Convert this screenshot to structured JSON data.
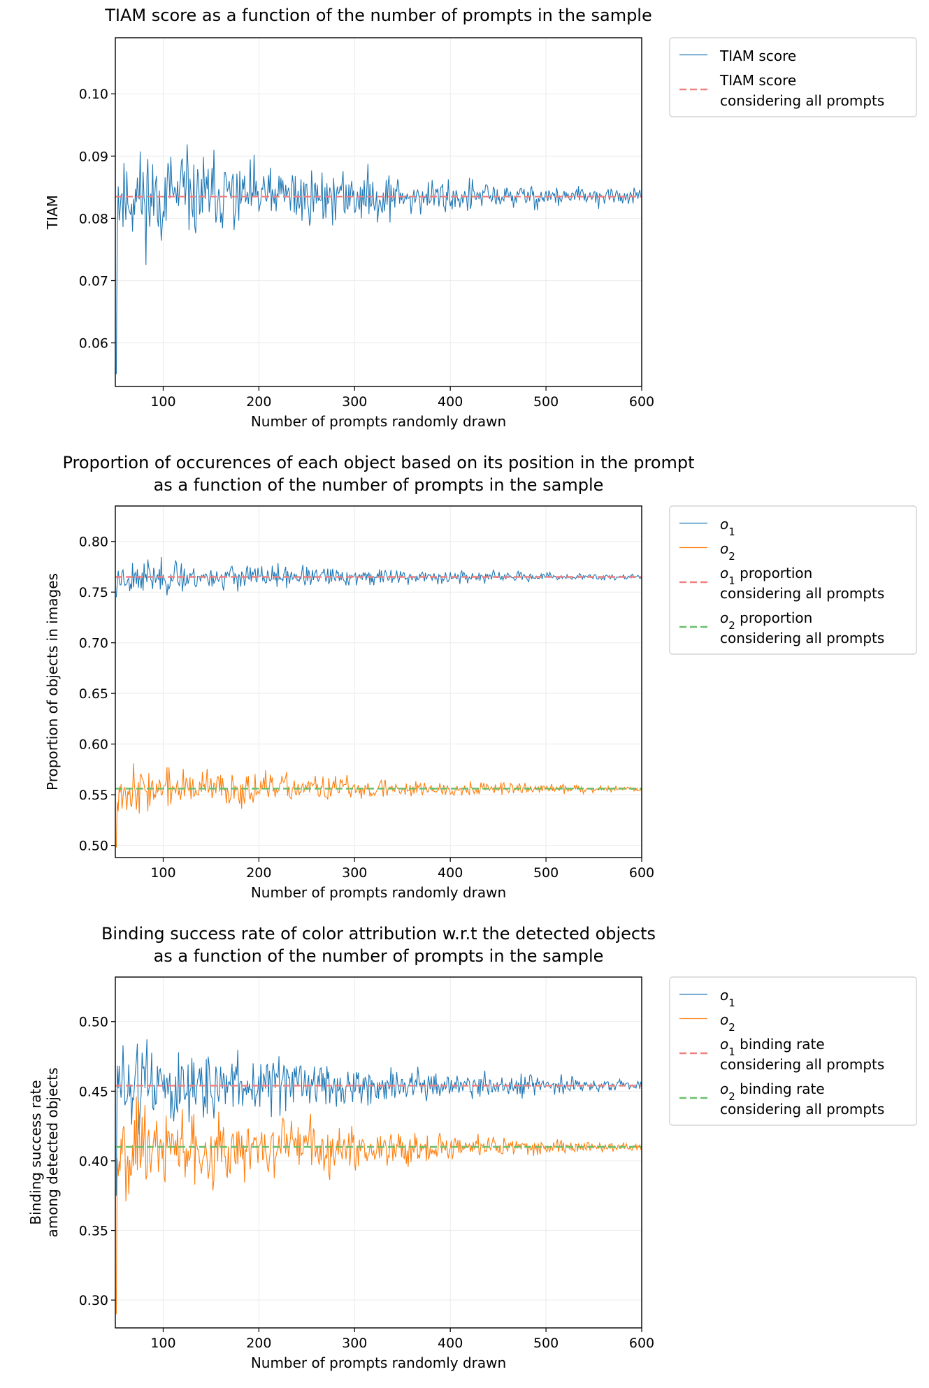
{
  "colors": {
    "series_o1": "#1f77b4",
    "series_o2": "#ff7f0e",
    "ref_red": "#f08080",
    "ref_green": "#6abf69",
    "grid": "#ebebeb",
    "axis": "#000000"
  },
  "chart_data": [
    {
      "type": "line",
      "title": [
        "TIAM score as a function of the number of prompts in the sample"
      ],
      "xlabel": "Number of prompts randomly drawn",
      "ylabel": [
        "TIAM"
      ],
      "xlim": [
        50,
        600
      ],
      "ylim": [
        0.053,
        0.109
      ],
      "xticks": [
        100,
        200,
        300,
        400,
        500,
        600
      ],
      "yticks": [
        0.06,
        0.07,
        0.08,
        0.09,
        0.1
      ],
      "ytick_labels": [
        "0.06",
        "0.07",
        "0.08",
        "0.09",
        "0.10"
      ],
      "grid": true,
      "legend_position": "outside-top-right",
      "series": [
        {
          "name": "TIAM score",
          "style": "solid",
          "color_key": "series_o1",
          "baseline": 0.0835,
          "start": 0.055,
          "amp_start": 0.014,
          "amp_end": 0.0011,
          "spread": 0.0015,
          "seed": 11
        }
      ],
      "reference_lines": [
        {
          "name": [
            "TIAM score",
            "considering all prompts"
          ],
          "y": 0.0835,
          "style": "dashed",
          "color_key": "ref_red"
        }
      ]
    },
    {
      "type": "line",
      "title": [
        "Proportion of occurences of each object based on its position in the prompt",
        "as a function of the number of prompts in the sample"
      ],
      "xlabel": "Number of prompts randomly drawn",
      "ylabel": [
        "Proportion of objects in images"
      ],
      "xlim": [
        50,
        600
      ],
      "ylim": [
        0.488,
        0.835
      ],
      "xticks": [
        100,
        200,
        300,
        400,
        500,
        600
      ],
      "yticks": [
        0.5,
        0.55,
        0.6,
        0.65,
        0.7,
        0.75,
        0.8
      ],
      "ytick_labels": [
        "0.50",
        "0.55",
        "0.60",
        "0.65",
        "0.70",
        "0.75",
        "0.80"
      ],
      "grid": true,
      "legend_position": "outside-top-right",
      "series": [
        {
          "name": "o1",
          "style": "solid",
          "color_key": "series_o1",
          "baseline": 0.765,
          "start": 0.745,
          "amp_start": 0.03,
          "amp_end": 0.003,
          "spread": 0.0025,
          "seed": 23
        },
        {
          "name": "o2",
          "style": "solid",
          "color_key": "series_o2",
          "baseline": 0.556,
          "start": 0.498,
          "amp_start": 0.04,
          "amp_end": 0.003,
          "spread": 0.0025,
          "seed": 37
        }
      ],
      "reference_lines": [
        {
          "name": [
            "o1 proportion",
            "considering all prompts"
          ],
          "y": 0.765,
          "style": "dashed",
          "color_key": "ref_red"
        },
        {
          "name": [
            "o2 proportion",
            "considering all prompts"
          ],
          "y": 0.556,
          "style": "dashed",
          "color_key": "ref_green"
        }
      ]
    },
    {
      "type": "line",
      "title": [
        "Binding success rate of color attribution w.r.t the detected objects",
        "as a function of the number of prompts in the sample"
      ],
      "xlabel": "Number of prompts randomly drawn",
      "ylabel": [
        "Binding success rate",
        "among detected objects"
      ],
      "xlim": [
        50,
        600
      ],
      "ylim": [
        0.28,
        0.532
      ],
      "xticks": [
        100,
        200,
        300,
        400,
        500,
        600
      ],
      "yticks": [
        0.3,
        0.35,
        0.4,
        0.45,
        0.5
      ],
      "ytick_labels": [
        "0.30",
        "0.35",
        "0.40",
        "0.45",
        "0.50"
      ],
      "grid": true,
      "legend_position": "outside-top-right",
      "series": [
        {
          "name": "o1",
          "style": "solid",
          "color_key": "series_o1",
          "baseline": 0.454,
          "start": 0.375,
          "amp_start": 0.055,
          "amp_end": 0.004,
          "spread": 0.0025,
          "seed": 51
        },
        {
          "name": "o2",
          "style": "solid",
          "color_key": "series_o2",
          "baseline": 0.41,
          "start": 0.29,
          "amp_start": 0.06,
          "amp_end": 0.003,
          "spread": 0.0025,
          "seed": 67
        }
      ],
      "reference_lines": [
        {
          "name": [
            "o1 binding rate",
            "considering all prompts"
          ],
          "y": 0.454,
          "style": "dashed",
          "color_key": "ref_red"
        },
        {
          "name": [
            "o2 binding rate",
            "considering all prompts"
          ],
          "y": 0.41,
          "style": "dashed",
          "color_key": "ref_green"
        }
      ]
    }
  ]
}
